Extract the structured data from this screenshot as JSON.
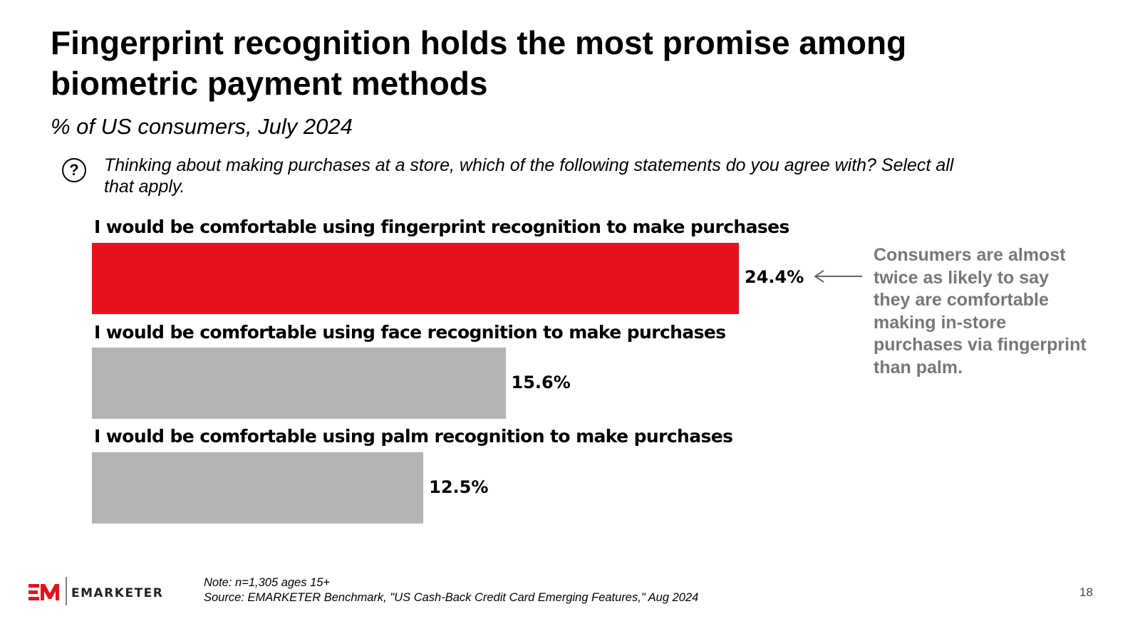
{
  "chart_data": {
    "type": "bar",
    "orientation": "horizontal",
    "title": "Fingerprint recognition holds the most promise among biometric payment methods",
    "subtitle": "% of US consumers, July 2024",
    "question": "Thinking about making purchases at a store, which of the following statements do you agree with? Select all that apply.",
    "categories": [
      "I would be comfortable using fingerprint recognition to make purchases",
      "I would be comfortable using face recognition to make purchases",
      "I would be comfortable using palm recognition to make purchases"
    ],
    "values": [
      24.4,
      15.6,
      12.5
    ],
    "value_labels": [
      "24.4%",
      "15.6%",
      "12.5%"
    ],
    "colors": [
      "#e8101c",
      "#b3b3b3",
      "#b3b3b3"
    ],
    "annotation": "Consumers are almost twice as likely to say they are comfortable making in-store purchases via fingerprint than palm.",
    "grid": false
  },
  "footer": {
    "note": "Note: n=1,305 ages 15+",
    "source": "Source: EMARKETER Benchmark, \"US Cash-Back Credit Card Emerging Features,\" Aug 2024",
    "page": "18",
    "logo": "EMARKETER"
  },
  "icons": {
    "question": "question-circle-icon",
    "arrow": "arrow-left-icon"
  }
}
